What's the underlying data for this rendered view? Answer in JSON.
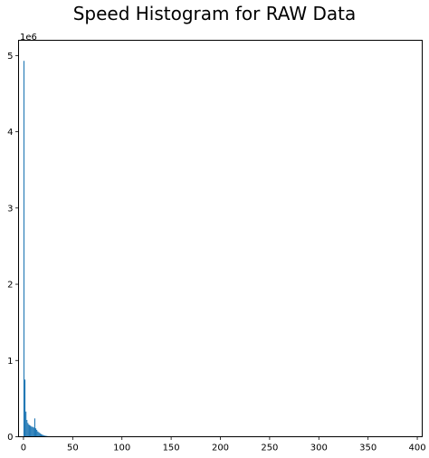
{
  "chart_data": {
    "type": "bar",
    "title": "Speed Histogram for RAW Data",
    "xlabel": "",
    "ylabel": "",
    "y_offset_label": "1e6",
    "xlim": [
      -5,
      405
    ],
    "ylim": [
      0,
      5.2
    ],
    "x_ticks": [
      0,
      50,
      100,
      150,
      200,
      250,
      300,
      350,
      400
    ],
    "y_ticks": [
      0,
      1,
      2,
      3,
      4,
      5
    ],
    "grid": false,
    "bar_color": "#1f77b4",
    "bin_width": 1,
    "bins": [
      {
        "x": 0,
        "value": 4.93
      },
      {
        "x": 1,
        "value": 0.75
      },
      {
        "x": 2,
        "value": 0.33
      },
      {
        "x": 3,
        "value": 0.22
      },
      {
        "x": 4,
        "value": 0.18
      },
      {
        "x": 5,
        "value": 0.16
      },
      {
        "x": 6,
        "value": 0.15
      },
      {
        "x": 7,
        "value": 0.14
      },
      {
        "x": 8,
        "value": 0.13
      },
      {
        "x": 9,
        "value": 0.13
      },
      {
        "x": 10,
        "value": 0.12
      },
      {
        "x": 11,
        "value": 0.24
      },
      {
        "x": 12,
        "value": 0.11
      },
      {
        "x": 13,
        "value": 0.09
      },
      {
        "x": 14,
        "value": 0.07
      },
      {
        "x": 15,
        "value": 0.06
      },
      {
        "x": 16,
        "value": 0.05
      },
      {
        "x": 17,
        "value": 0.04
      },
      {
        "x": 18,
        "value": 0.03
      },
      {
        "x": 19,
        "value": 0.025
      },
      {
        "x": 20,
        "value": 0.02
      },
      {
        "x": 21,
        "value": 0.015
      },
      {
        "x": 22,
        "value": 0.012
      },
      {
        "x": 23,
        "value": 0.01
      },
      {
        "x": 24,
        "value": 0.008
      },
      {
        "x": 25,
        "value": 0.006
      },
      {
        "x": 26,
        "value": 0.005
      },
      {
        "x": 27,
        "value": 0.004
      }
    ]
  }
}
